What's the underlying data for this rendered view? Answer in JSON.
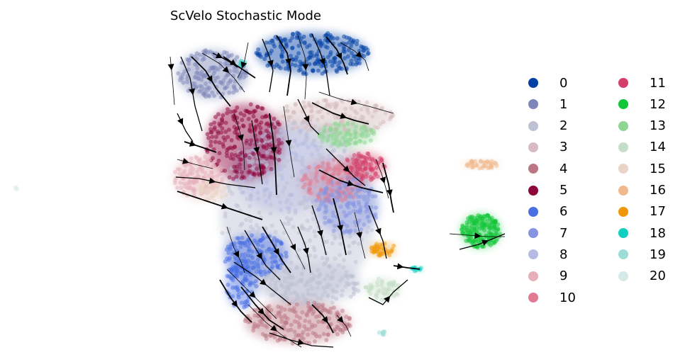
{
  "chart_data": {
    "type": "scatter",
    "title": "ScVelo Stochastic Mode",
    "xlabel": "",
    "ylabel": "",
    "axes_visible": false,
    "grid": false,
    "overlay": "velocity streamlines with arrowheads",
    "legend_placement": "right",
    "categories": [
      "0",
      "1",
      "2",
      "3",
      "4",
      "5",
      "6",
      "7",
      "8",
      "9",
      "10",
      "11",
      "12",
      "13",
      "14",
      "15",
      "16",
      "17",
      "18",
      "19",
      "20"
    ],
    "colors": [
      "#023fa5",
      "#7d87b9",
      "#bec1d4",
      "#d6bcc0",
      "#bb7784",
      "#8e063b",
      "#4a6fe3",
      "#8595e1",
      "#b5bbe3",
      "#e6afb9",
      "#e07b91",
      "#d33f6a",
      "#11c638",
      "#8dd593",
      "#c6dec7",
      "#ead3c6",
      "#f0b98d",
      "#ef9708",
      "#0fcfc0",
      "#9cded6",
      "#d5eae7"
    ]
  }
}
